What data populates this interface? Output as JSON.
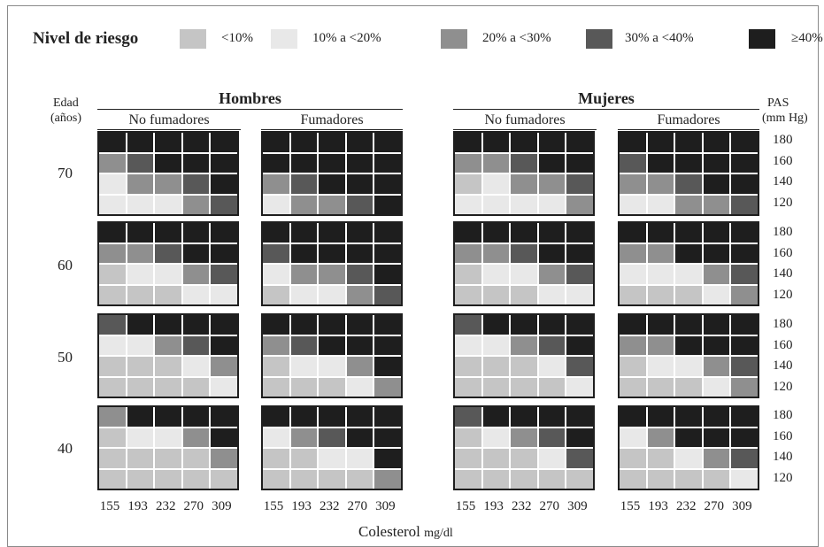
{
  "colors": {
    "r0": "#c5c5c5",
    "r1": "#e8e8e8",
    "r2": "#8f8f8f",
    "r3": "#585858",
    "r4": "#1e1e1e"
  },
  "legend": {
    "title": "Nivel de riesgo",
    "items": [
      {
        "label": "<10%",
        "level": 0
      },
      {
        "label": "10% a <20%",
        "level": 1
      },
      {
        "label": "20% a <30%",
        "level": 2
      },
      {
        "label": "30% a <40%",
        "level": 3
      },
      {
        "label": "≥40%",
        "level": 4
      }
    ]
  },
  "headers": {
    "age_title": "Edad",
    "age_units": "(años)",
    "men": "Hombres",
    "women": "Mujeres",
    "non_smokers": "No fumadores",
    "smokers": "Fumadores",
    "pas_title": "PAS",
    "pas_units": "(mm Hg)"
  },
  "ages": [
    "70",
    "60",
    "50",
    "40"
  ],
  "pas_values": [
    "180",
    "160",
    "140",
    "120"
  ],
  "cholesterol_values": [
    "155",
    "193",
    "232",
    "270",
    "309"
  ],
  "xaxis": {
    "label": "Colesterol",
    "unit": "mg/dl"
  },
  "grids": [
    [
      [
        [
          4,
          4,
          4,
          4,
          4
        ],
        [
          2,
          3,
          4,
          4,
          4
        ],
        [
          1,
          2,
          2,
          3,
          4
        ],
        [
          1,
          1,
          1,
          2,
          3
        ]
      ],
      [
        [
          4,
          4,
          4,
          4,
          4
        ],
        [
          4,
          4,
          4,
          4,
          4
        ],
        [
          2,
          3,
          4,
          4,
          4
        ],
        [
          1,
          2,
          2,
          3,
          4
        ]
      ],
      [
        [
          4,
          4,
          4,
          4,
          4
        ],
        [
          2,
          2,
          3,
          4,
          4
        ],
        [
          0,
          1,
          2,
          2,
          3
        ],
        [
          1,
          1,
          1,
          1,
          2
        ]
      ],
      [
        [
          4,
          4,
          4,
          4,
          4
        ],
        [
          3,
          4,
          4,
          4,
          4
        ],
        [
          2,
          2,
          3,
          4,
          4
        ],
        [
          1,
          1,
          2,
          2,
          3
        ]
      ]
    ],
    [
      [
        [
          4,
          4,
          4,
          4,
          4
        ],
        [
          2,
          2,
          3,
          4,
          4
        ],
        [
          0,
          1,
          1,
          2,
          3
        ],
        [
          0,
          0,
          0,
          1,
          1
        ]
      ],
      [
        [
          4,
          4,
          4,
          4,
          4
        ],
        [
          3,
          4,
          4,
          4,
          4
        ],
        [
          1,
          2,
          2,
          3,
          4
        ],
        [
          0,
          1,
          1,
          2,
          3
        ]
      ],
      [
        [
          4,
          4,
          4,
          4,
          4
        ],
        [
          2,
          2,
          3,
          4,
          4
        ],
        [
          0,
          1,
          1,
          2,
          3
        ],
        [
          0,
          0,
          0,
          1,
          1
        ]
      ],
      [
        [
          4,
          4,
          4,
          4,
          4
        ],
        [
          2,
          2,
          4,
          4,
          4
        ],
        [
          1,
          1,
          1,
          2,
          3
        ],
        [
          0,
          0,
          0,
          1,
          2
        ]
      ]
    ],
    [
      [
        [
          3,
          4,
          4,
          4,
          4
        ],
        [
          1,
          1,
          2,
          3,
          4
        ],
        [
          0,
          0,
          0,
          1,
          2
        ],
        [
          0,
          0,
          0,
          0,
          1
        ]
      ],
      [
        [
          4,
          4,
          4,
          4,
          4
        ],
        [
          2,
          3,
          4,
          4,
          4
        ],
        [
          0,
          1,
          1,
          2,
          4
        ],
        [
          0,
          0,
          0,
          1,
          2
        ]
      ],
      [
        [
          3,
          4,
          4,
          4,
          4
        ],
        [
          1,
          1,
          2,
          3,
          4
        ],
        [
          0,
          0,
          0,
          1,
          3
        ],
        [
          0,
          0,
          0,
          0,
          1
        ]
      ],
      [
        [
          4,
          4,
          4,
          4,
          4
        ],
        [
          2,
          2,
          4,
          4,
          4
        ],
        [
          0,
          1,
          1,
          2,
          3
        ],
        [
          0,
          0,
          0,
          1,
          2
        ]
      ]
    ],
    [
      [
        [
          2,
          4,
          4,
          4,
          4
        ],
        [
          0,
          1,
          1,
          2,
          4
        ],
        [
          0,
          0,
          0,
          0,
          2
        ],
        [
          0,
          0,
          0,
          0,
          0
        ]
      ],
      [
        [
          4,
          4,
          4,
          4,
          4
        ],
        [
          1,
          2,
          3,
          4,
          4
        ],
        [
          0,
          0,
          1,
          1,
          4
        ],
        [
          0,
          0,
          0,
          0,
          2
        ]
      ],
      [
        [
          3,
          4,
          4,
          4,
          4
        ],
        [
          0,
          1,
          2,
          3,
          4
        ],
        [
          0,
          0,
          0,
          1,
          3
        ],
        [
          0,
          0,
          0,
          0,
          0
        ]
      ],
      [
        [
          4,
          4,
          4,
          4,
          4
        ],
        [
          1,
          2,
          4,
          4,
          4
        ],
        [
          0,
          0,
          1,
          2,
          3
        ],
        [
          0,
          0,
          0,
          0,
          1
        ]
      ]
    ]
  ]
}
